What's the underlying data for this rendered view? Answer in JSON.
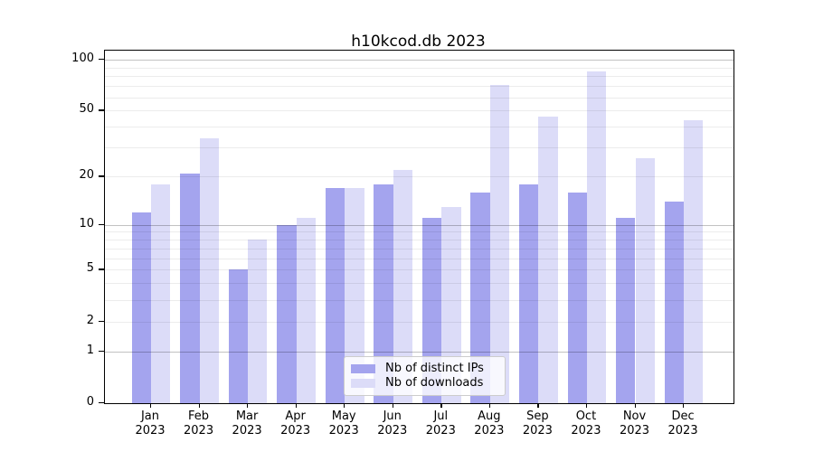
{
  "title": "h10kcod.db 2023",
  "colors": {
    "distinct_ips_bar": "#a4a4ee",
    "downloads_bar": "#dcdcf8",
    "grid_minor": "#ececec",
    "grid_major": "#c2c2c2",
    "axis": "#000000",
    "legend_border": "#cccccc",
    "background": "#ffffff"
  },
  "legend": {
    "entries": [
      "Nb of distinct IPs",
      "Nb of downloads"
    ]
  },
  "chart_data": {
    "type": "bar",
    "title": "h10kcod.db 2023",
    "xlabel": "",
    "ylabel": "",
    "months": [
      "Jan",
      "Feb",
      "Mar",
      "Apr",
      "May",
      "Jun",
      "Jul",
      "Aug",
      "Sep",
      "Oct",
      "Nov",
      "Dec"
    ],
    "year_label": "2023",
    "series": [
      {
        "name": "Nb of distinct IPs",
        "color": "#a4a4ee",
        "values": [
          12,
          21,
          5,
          10,
          17,
          18,
          11,
          16,
          18,
          16,
          11,
          14
        ]
      },
      {
        "name": "Nb of downloads",
        "color": "#dcdcf8",
        "values": [
          18,
          34,
          8,
          11,
          17,
          22,
          13,
          71,
          46,
          85,
          26,
          44
        ]
      }
    ],
    "yscale": "log1p",
    "ylim": [
      0,
      113
    ],
    "yticks": [
      0,
      1,
      2,
      5,
      10,
      20,
      50,
      100
    ],
    "major_gridlines": [
      1,
      10,
      100
    ],
    "minor_gridlines": [
      2,
      3,
      4,
      5,
      6,
      7,
      8,
      9,
      20,
      30,
      40,
      50,
      60,
      70,
      80,
      90
    ],
    "grid": "horizontal",
    "legend_position": "lower center"
  }
}
